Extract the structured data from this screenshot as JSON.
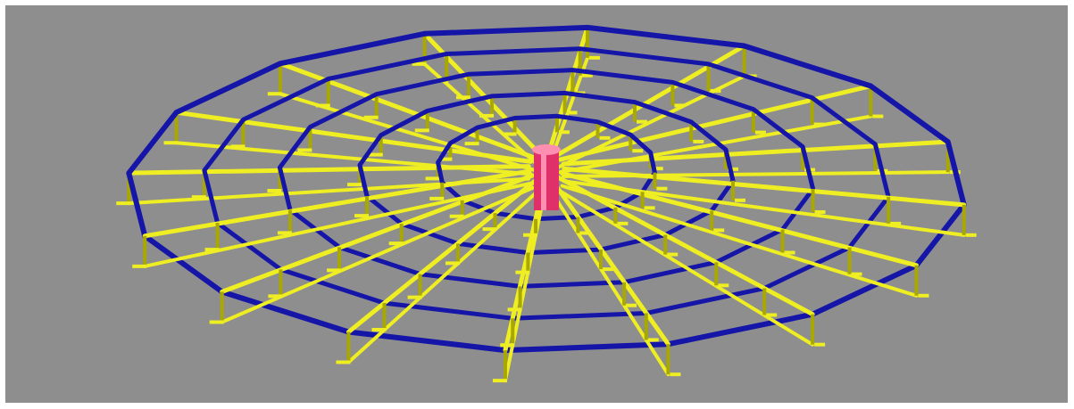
{
  "scene": {
    "subject": "wireframe-dome-frame",
    "radial_member_count": 16,
    "ring_count": 5,
    "colors": {
      "background": "#8e8e8e",
      "frame": "#ffffff",
      "ring": "#1515a8",
      "radial": "#eeee22",
      "radial_shadow": "#a8a800",
      "hub": "#e0306a",
      "hub_highlight": "#ff8fb0"
    }
  }
}
